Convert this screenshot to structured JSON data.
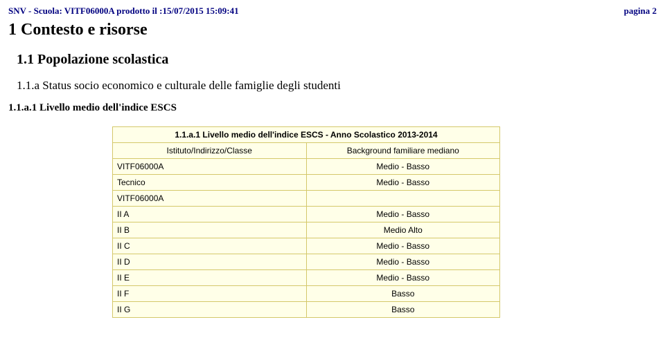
{
  "header": {
    "left": "SNV - Scuola: VITF06000A prodotto il :15/07/2015 15:09:41",
    "right": "pagina 2"
  },
  "section": {
    "title": "1 Contesto e risorse",
    "subtitle": "1.1 Popolazione scolastica",
    "subsub": "1.1.a Status socio economico e culturale delle famiglie degli studenti",
    "indicator": "1.1.a.1 Livello medio dell'indice ESCS"
  },
  "table": {
    "title": "1.1.a.1 Livello medio dell'indice ESCS - Anno Scolastico 2013-2014",
    "col_left": "Istituto/Indirizzo/Classe",
    "col_right": "Background familiare mediano",
    "rows": [
      {
        "label": "VITF06000A",
        "value": "Medio - Basso"
      },
      {
        "label": "Tecnico",
        "value": "Medio - Basso"
      },
      {
        "label": "VITF06000A",
        "value": ""
      },
      {
        "label": "II A",
        "value": "Medio - Basso"
      },
      {
        "label": "II B",
        "value": "Medio Alto"
      },
      {
        "label": "II C",
        "value": "Medio - Basso"
      },
      {
        "label": "II D",
        "value": "Medio - Basso"
      },
      {
        "label": "II E",
        "value": "Medio - Basso"
      },
      {
        "label": "II F",
        "value": "Basso"
      },
      {
        "label": "II G",
        "value": "Basso"
      }
    ]
  },
  "colors": {
    "header_text": "#000080",
    "table_bg": "#ffffe8",
    "table_border": "#d4c86a"
  }
}
